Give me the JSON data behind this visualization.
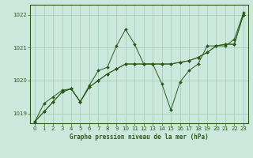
{
  "title": "Graphe pression niveau de la mer (hPa)",
  "bg_color": "#cce8dc",
  "grid_color": "#a0c8b8",
  "line_color": "#2d5a1b",
  "marker_color": "#2d5a1b",
  "ylim": [
    1018.7,
    1022.3
  ],
  "xlim": [
    -0.5,
    23.5
  ],
  "yticks": [
    1019,
    1020,
    1021,
    1022
  ],
  "xticks": [
    0,
    1,
    2,
    3,
    4,
    5,
    6,
    7,
    8,
    9,
    10,
    11,
    12,
    13,
    14,
    15,
    16,
    17,
    18,
    19,
    20,
    21,
    22,
    23
  ],
  "series": [
    [
      1018.75,
      1019.3,
      1019.5,
      1019.7,
      1019.75,
      1019.35,
      1019.85,
      1020.3,
      1020.4,
      1021.05,
      1021.5,
      1021.1,
      1020.5,
      1020.5,
      1019.9,
      1019.1,
      1019.95,
      1020.3,
      1020.5,
      1021.05,
      1021.05,
      1021.05,
      1021.25,
      1022.05
    ],
    [
      1018.75,
      1019.3,
      1019.5,
      1019.65,
      1019.75,
      1019.35,
      1020.0,
      1020.25,
      1020.35,
      1020.5,
      1020.6,
      1020.55,
      1020.5,
      1020.5,
      1020.5,
      1020.5,
      1020.55,
      1020.6,
      1020.7,
      1020.85,
      1021.05,
      1021.1,
      1021.15,
      1022.0
    ],
    [
      1018.75,
      1019.3,
      1019.5,
      1019.65,
      1019.75,
      1019.35,
      1020.0,
      1020.25,
      1020.35,
      1020.5,
      1020.6,
      1020.55,
      1020.5,
      1020.5,
      1020.5,
      1020.5,
      1020.55,
      1020.6,
      1020.7,
      1020.85,
      1021.05,
      1021.1,
      1021.15,
      1022.0
    ]
  ]
}
